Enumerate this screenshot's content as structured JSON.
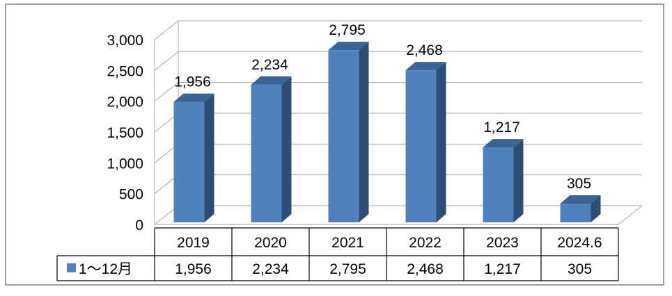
{
  "colors": {
    "bar_front": "#4F81BD",
    "bar_side": "#2C4D75",
    "bar_top": "#3A6496",
    "grid": "#A6A6A6",
    "frame": "#808080",
    "text": "#000000"
  },
  "chart_data": {
    "type": "bar",
    "categories": [
      "2019",
      "2020",
      "2021",
      "2022",
      "2023",
      "2024.6"
    ],
    "series": [
      {
        "name": "1～12月",
        "values": [
          1956,
          2234,
          2795,
          2468,
          1217,
          305
        ]
      }
    ],
    "value_labels": [
      "1,956",
      "2,234",
      "2,795",
      "2,468",
      "1,217",
      "305"
    ],
    "yticks": [
      "0",
      "500",
      "1,000",
      "1,500",
      "2,000",
      "2,500",
      "3,000"
    ],
    "ytick_values": [
      0,
      500,
      1000,
      1500,
      2000,
      2500,
      3000
    ],
    "ylim": [
      0,
      3000
    ],
    "grid": true,
    "legend": "data-table",
    "legend_icon": "square-legend-icon",
    "title": "",
    "xlabel": "",
    "ylabel": ""
  }
}
